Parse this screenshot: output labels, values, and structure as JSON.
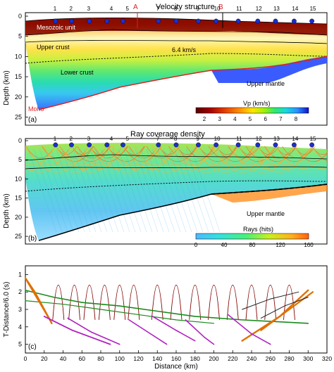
{
  "panel_a": {
    "title": "Velocity structure",
    "tag": "(a)",
    "profile_marks": [
      "A",
      "B"
    ],
    "labels": {
      "mesozoic": "Mesozoic unit",
      "upper_crust": "Upper crust",
      "lower_crust": "Lower crust",
      "upper_mantle": "Upper mantle",
      "moho": "Moho",
      "isoline": "6.4 km/s"
    },
    "colorbar": {
      "title": "Vp (km/s)",
      "ticks": [
        "2",
        "3",
        "4",
        "5",
        "6",
        "7",
        "8"
      ],
      "colors": [
        "#5a0000",
        "#a00000",
        "#e23b00",
        "#ff8a00",
        "#ffe400",
        "#a8f000",
        "#2ee870",
        "#18d8e0",
        "#2a90ff",
        "#1010c8"
      ]
    }
  },
  "panel_b": {
    "title": "Ray coverage density",
    "tag": "(b)",
    "labels": {
      "upper_mantle": "Upper mantle"
    },
    "colorbar": {
      "title": "Rays (hits)",
      "ticks": [
        "0",
        "40",
        "80",
        "120",
        "160"
      ],
      "colors": [
        "#4fb8ff",
        "#32e0e0",
        "#4bf078",
        "#c8f020",
        "#ffb020",
        "#ff6010"
      ]
    }
  },
  "panel_c": {
    "tag": "(c)"
  },
  "stations": [
    "1",
    "2",
    "3",
    "4",
    "5",
    "7",
    "8",
    "9",
    "10",
    "11",
    "12",
    "13",
    "14",
    "15"
  ],
  "axes": {
    "depth_label": "Depth (km)",
    "depth_ticks": [
      "0",
      "5",
      "10",
      "15",
      "20",
      "25"
    ],
    "time_label": "T-Distance/6.0 (s)",
    "time_ticks": [
      "1",
      "2",
      "3",
      "4",
      "5"
    ],
    "x_label": "Distance (km)",
    "x_ticks": [
      "0",
      "20",
      "40",
      "60",
      "80",
      "100",
      "120",
      "140",
      "160",
      "180",
      "200",
      "220",
      "240",
      "260",
      "280",
      "300",
      "320"
    ]
  }
}
